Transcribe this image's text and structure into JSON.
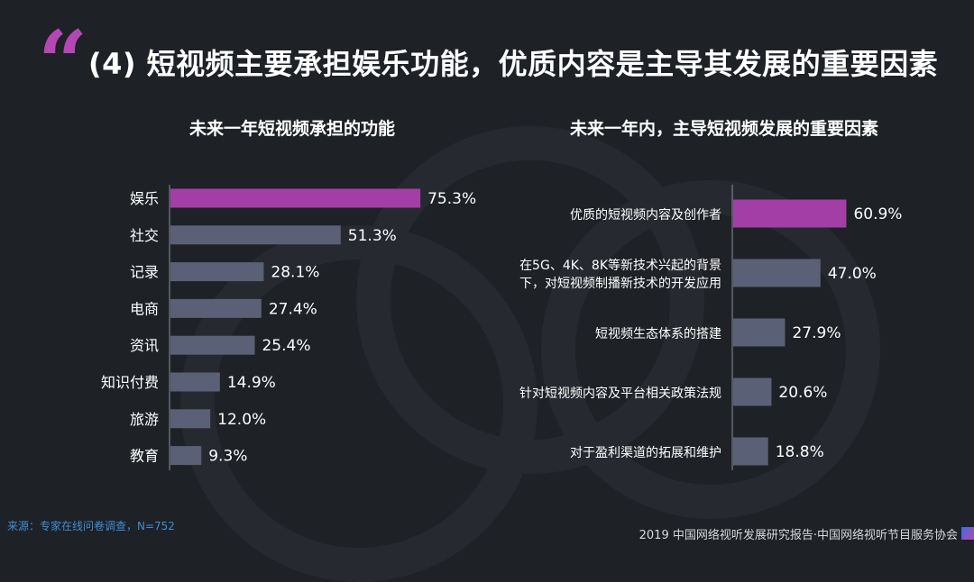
{
  "header": {
    "quote_mark": "“",
    "title": "(4) 短视频主要承担娱乐功能，优质内容是主导其发展的重要因素"
  },
  "chart_data": [
    {
      "type": "bar",
      "orientation": "horizontal",
      "title": "未来一年短视频承担的功能",
      "categories": [
        "娱乐",
        "社交",
        "记录",
        "电商",
        "资讯",
        "知识付费",
        "旅游",
        "教育"
      ],
      "values": [
        75.3,
        51.3,
        28.1,
        27.4,
        25.4,
        14.9,
        12.0,
        9.3
      ],
      "value_labels": [
        "75.3%",
        "51.3%",
        "28.1%",
        "27.4%",
        "25.4%",
        "14.9%",
        "12.0%",
        "9.3%"
      ],
      "xlim": [
        0,
        100
      ],
      "highlight_color": "#a33ea6",
      "bar_color": "#5a6075"
    },
    {
      "type": "bar",
      "orientation": "horizontal",
      "title": "未来一年内，主导短视频发展的重要因素",
      "categories": [
        [
          "优质的短视频内容及创作者"
        ],
        [
          "在5G、4K、8K等新技术兴起的背景",
          "下，对短视频制播新技术的开发应用"
        ],
        [
          "短视频生态体系的搭建"
        ],
        [
          "针对短视频内容及平台相关政策法规"
        ],
        [
          "对于盈利渠道的拓展和维护"
        ]
      ],
      "values": [
        60.9,
        47.0,
        27.9,
        20.6,
        18.8
      ],
      "value_labels": [
        "60.9%",
        "47.0%",
        "27.9%",
        "20.6%",
        "18.8%"
      ],
      "xlim": [
        0,
        100
      ],
      "highlight_color": "#a33ea6",
      "bar_color": "#5a6075"
    }
  ],
  "source": "来源：专家在线问卷调查，N=752",
  "footer": "2019 中国网络视听发展研究报告·中国网络视听节目服务协会"
}
